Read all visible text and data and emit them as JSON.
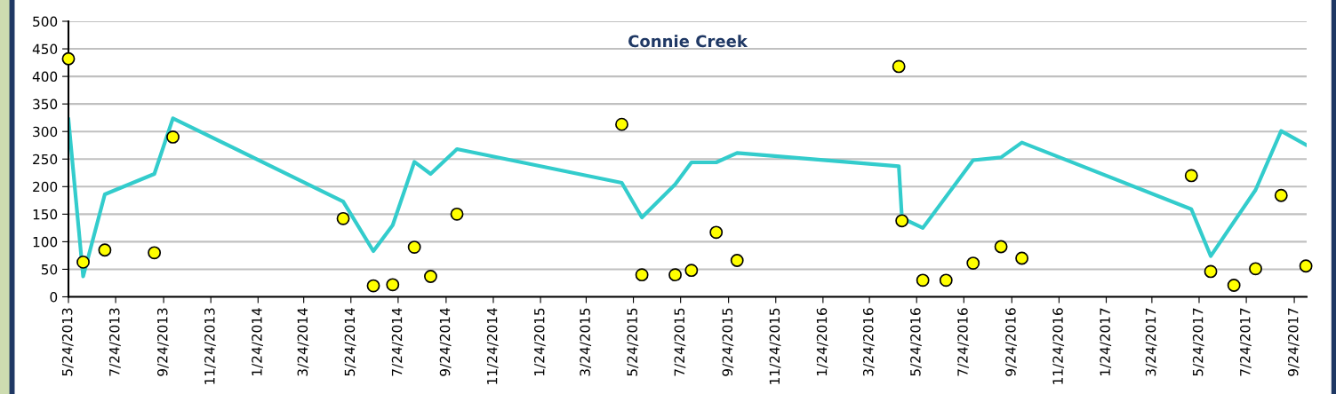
{
  "chart_data": {
    "type": "line",
    "title": "Connie Creek",
    "xlim": [
      "2013-05-24",
      "2017-10-10"
    ],
    "ylim": [
      0,
      500
    ],
    "yticks": [
      0,
      50,
      100,
      150,
      200,
      250,
      300,
      350,
      400,
      450,
      500
    ],
    "xticks": [
      {
        "value": "2013-05-24",
        "label": "5/24/2013"
      },
      {
        "value": "2013-07-24",
        "label": "7/24/2013"
      },
      {
        "value": "2013-09-24",
        "label": "9/24/2013"
      },
      {
        "value": "2013-11-24",
        "label": "11/24/2013"
      },
      {
        "value": "2014-01-24",
        "label": "1/24/2014"
      },
      {
        "value": "2014-03-24",
        "label": "3/24/2014"
      },
      {
        "value": "2014-05-24",
        "label": "5/24/2014"
      },
      {
        "value": "2014-07-24",
        "label": "7/24/2014"
      },
      {
        "value": "2014-09-24",
        "label": "9/24/2014"
      },
      {
        "value": "2014-11-24",
        "label": "11/24/2014"
      },
      {
        "value": "2015-01-24",
        "label": "1/24/2015"
      },
      {
        "value": "2015-03-24",
        "label": "3/24/2015"
      },
      {
        "value": "2015-05-24",
        "label": "5/24/2015"
      },
      {
        "value": "2015-07-24",
        "label": "7/24/2015"
      },
      {
        "value": "2015-09-24",
        "label": "9/24/2015"
      },
      {
        "value": "2015-11-24",
        "label": "11/24/2015"
      },
      {
        "value": "2016-01-24",
        "label": "1/24/2016"
      },
      {
        "value": "2016-03-24",
        "label": "3/24/2016"
      },
      {
        "value": "2016-05-24",
        "label": "5/24/2016"
      },
      {
        "value": "2016-07-24",
        "label": "7/24/2016"
      },
      {
        "value": "2016-09-24",
        "label": "9/24/2016"
      },
      {
        "value": "2016-11-24",
        "label": "11/24/2016"
      },
      {
        "value": "2017-01-24",
        "label": "1/24/2017"
      },
      {
        "value": "2017-03-24",
        "label": "3/24/2017"
      },
      {
        "value": "2017-05-24",
        "label": "5/24/2017"
      },
      {
        "value": "2017-07-24",
        "label": "7/24/2017"
      },
      {
        "value": "2017-09-24",
        "label": "9/24/2017"
      }
    ],
    "grid": "y",
    "legend": false,
    "series": [
      {
        "color": "#33cccc",
        "line_style": "solid",
        "x": [
          "2013-05-24",
          "2013-06-12",
          "2013-07-10",
          "2013-09-12",
          "2013-10-06",
          "2014-05-14",
          "2014-06-22",
          "2014-07-17",
          "2014-08-14",
          "2014-09-04",
          "2014-10-08",
          "2015-05-09",
          "2015-06-04",
          "2015-07-17",
          "2015-08-07",
          "2015-09-08",
          "2015-10-05",
          "2016-05-01",
          "2016-05-05",
          "2016-06-01",
          "2016-08-05",
          "2016-09-10",
          "2016-10-07",
          "2017-05-14",
          "2017-06-08",
          "2017-08-05",
          "2017-09-07",
          "2017-10-09"
        ],
        "values": [
          322,
          37,
          186,
          223,
          324,
          173,
          83,
          130,
          245,
          223,
          268,
          207,
          144,
          204,
          244,
          244,
          261,
          237,
          143,
          125,
          248,
          253,
          280,
          159,
          74,
          194,
          301,
          276
        ]
      },
      {
        "type": "scatter",
        "color": "#ffff00",
        "marker": "circle",
        "x": [
          "2013-05-24",
          "2013-06-12",
          "2013-07-10",
          "2013-09-12",
          "2013-10-06",
          "2014-05-14",
          "2014-06-22",
          "2014-07-17",
          "2014-08-14",
          "2014-09-04",
          "2014-10-08",
          "2015-05-09",
          "2015-06-04",
          "2015-07-17",
          "2015-08-07",
          "2015-09-08",
          "2015-10-05",
          "2016-05-01",
          "2016-05-05",
          "2016-06-01",
          "2016-07-01",
          "2016-08-05",
          "2016-09-10",
          "2016-10-07",
          "2017-05-14",
          "2017-06-08",
          "2017-07-08",
          "2017-08-05",
          "2017-09-07",
          "2017-10-09"
        ],
        "values": [
          432,
          63,
          85,
          80,
          290,
          142,
          20,
          22,
          90,
          37,
          150,
          313,
          40,
          40,
          48,
          117,
          66,
          418,
          138,
          30,
          30,
          61,
          91,
          70,
          220,
          46,
          21,
          51,
          184,
          56
        ]
      }
    ]
  }
}
